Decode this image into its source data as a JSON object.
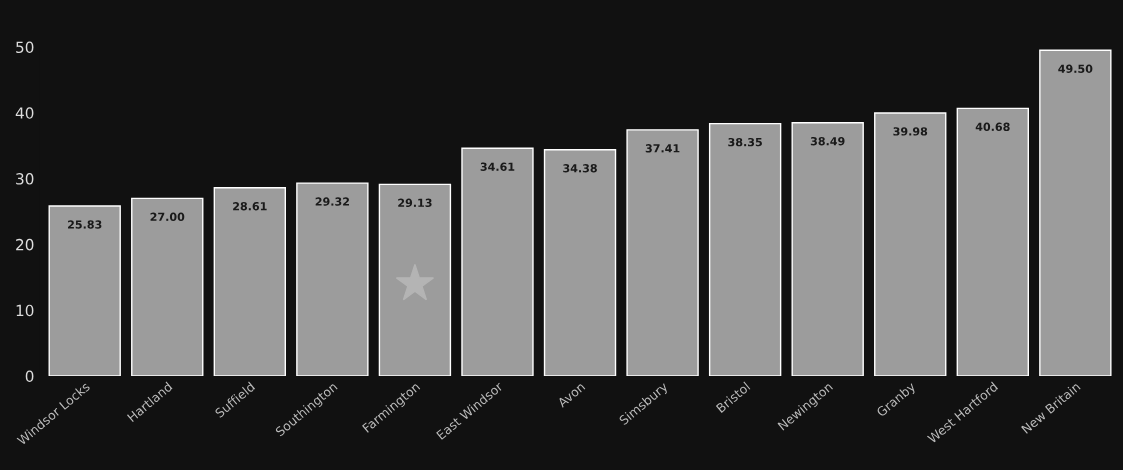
{
  "chart_data": {
    "type": "bar",
    "categories": [
      "Windsor Locks",
      "Hartland",
      "Suffield",
      "Southington",
      "Farmington",
      "East Windsor",
      "Avon",
      "Simsbury",
      "Bristol",
      "Newington",
      "Granby",
      "West Hartford",
      "New Britain"
    ],
    "values": [
      25.83,
      27.0,
      28.61,
      29.32,
      29.13,
      34.61,
      34.38,
      37.41,
      38.35,
      38.49,
      39.98,
      40.68,
      49.5
    ],
    "value_labels": [
      "25.83",
      "27.00",
      "28.61",
      "29.32",
      "29.13",
      "34.61",
      "34.38",
      "37.41",
      "38.35",
      "38.49",
      "39.98",
      "40.68",
      "49.50"
    ],
    "color": "#9c9c9c",
    "ylim": [
      0,
      50
    ],
    "yticks": [
      0,
      10,
      20,
      30,
      40,
      50
    ],
    "grid": false,
    "legend": false
  }
}
